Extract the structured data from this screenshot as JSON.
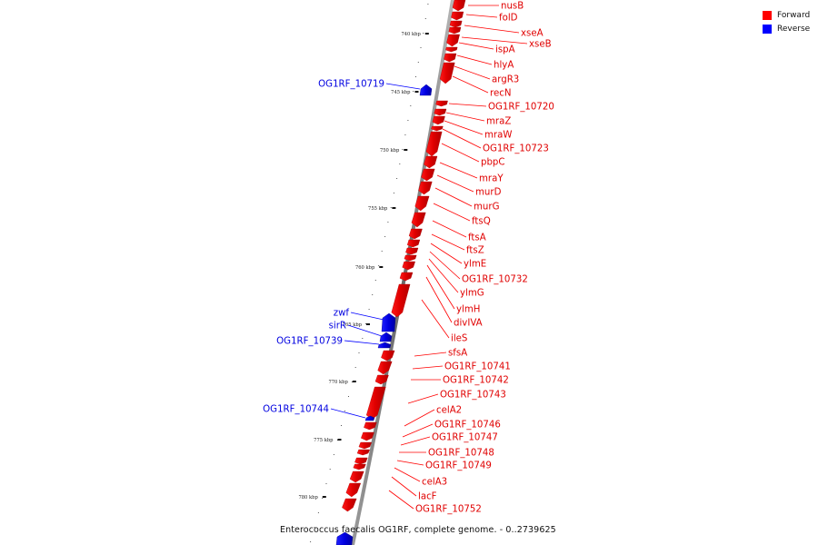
{
  "legend": {
    "forward": {
      "label": "Forward",
      "color": "#ff0000"
    },
    "reverse": {
      "label": "Reverse",
      "color": "#0000ff"
    }
  },
  "caption": "Enterococcus faecalis OG1RF, complete genome. - 0..2739625",
  "axis_ticks": [
    "740 kbp",
    "745 kbp",
    "750 kbp",
    "755 kbp",
    "760 kbp",
    "765 kbp",
    "770 kbp",
    "775 kbp",
    "780 kbp"
  ],
  "forward_genes": [
    "nusB",
    "folD",
    "xseA",
    "xseB",
    "ispA",
    "hlyA",
    "argR3",
    "recN",
    "OG1RF_10720",
    "mraZ",
    "mraW",
    "OG1RF_10723",
    "pbpC",
    "mraY",
    "murD",
    "murG",
    "ftsQ",
    "ftsA",
    "ftsZ",
    "ylmE",
    "OG1RF_10732",
    "ylmG",
    "ylmH",
    "divIVA",
    "ileS",
    "sfsA",
    "OG1RF_10741",
    "OG1RF_10742",
    "OG1RF_10743",
    "celA2",
    "OG1RF_10746",
    "OG1RF_10747",
    "OG1RF_10748",
    "OG1RF_10749",
    "celA3",
    "lacF",
    "OG1RF_10752"
  ],
  "reverse_genes": [
    "OG1RF_10719",
    "zwf",
    "sirR",
    "OG1RF_10739",
    "OG1RF_10744"
  ]
}
